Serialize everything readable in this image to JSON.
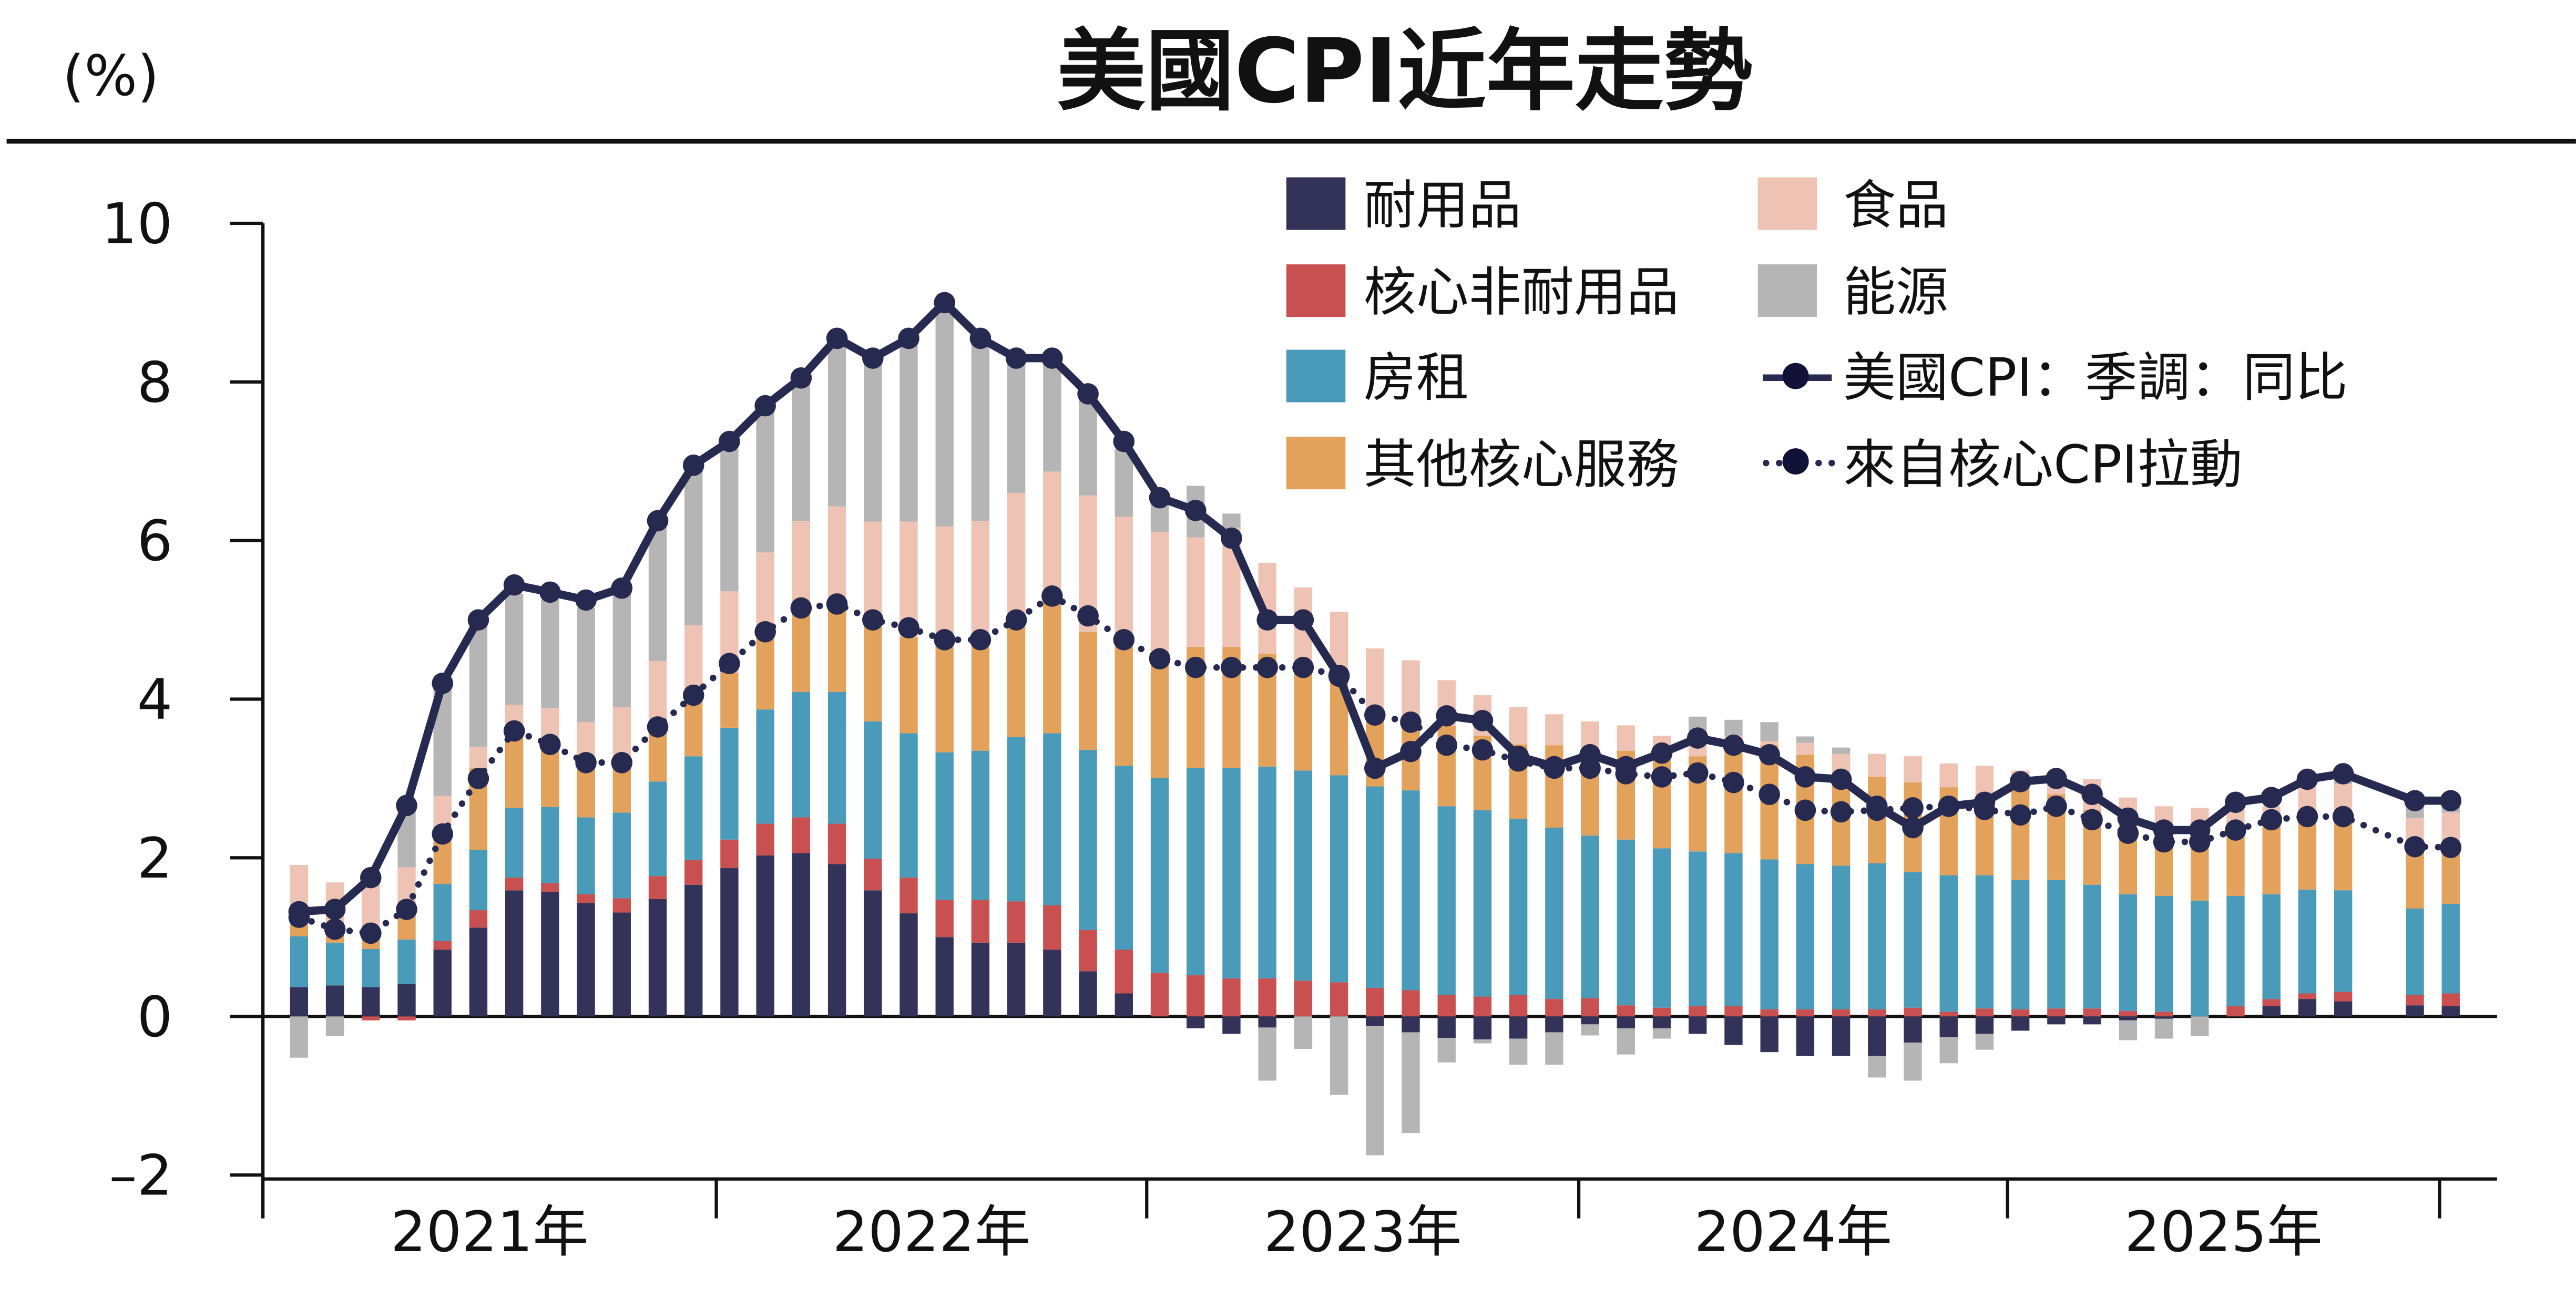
{
  "header": {
    "unit": "(%)",
    "title": "美國CPI近年走勢"
  },
  "chart_data": {
    "type": "bar",
    "stacked": true,
    "title": "美國CPI近年走勢",
    "ylabel": "(%)",
    "xlabel": "",
    "ylim": [
      -2,
      10
    ],
    "yticks": [
      10,
      8,
      6,
      4,
      2,
      0,
      -2
    ],
    "ytick_labels": [
      "10",
      "8",
      "6",
      "4",
      "2",
      "0",
      "–2"
    ],
    "xtick_labels": [
      "2021年",
      "2022年",
      "2023年",
      "2024年",
      "2025年"
    ],
    "grid": false,
    "legend_position": "top-right",
    "x": [
      "2020-12",
      "2021-01",
      "2021-02",
      "2021-03",
      "2021-04",
      "2021-05",
      "2021-06",
      "2021-07",
      "2021-08",
      "2021-09",
      "2021-10",
      "2021-11",
      "2021-12",
      "2022-01",
      "2022-02",
      "2022-03",
      "2022-04",
      "2022-05",
      "2022-06",
      "2022-07",
      "2022-08",
      "2022-09",
      "2022-10",
      "2022-11",
      "2022-12",
      "2023-01",
      "2023-02",
      "2023-03",
      "2023-04",
      "2023-05",
      "2023-06",
      "2023-07",
      "2023-08",
      "2023-09",
      "2023-10",
      "2023-11",
      "2023-12",
      "2024-01",
      "2024-02",
      "2024-03",
      "2024-04",
      "2024-05",
      "2024-06",
      "2024-07",
      "2024-08",
      "2024-09",
      "2024-10",
      "2024-11",
      "2024-12",
      "2025-01",
      "2025-02",
      "2025-03",
      "2025-04",
      "2025-05",
      "2025-06",
      "2025-07",
      "2025-08",
      "2025-09",
      "2025-10",
      "2025-11",
      "2025-12"
    ],
    "series": [
      {
        "name": "耐用品",
        "kind": "bar",
        "color": "#33335a",
        "values": [
          0.37,
          0.39,
          0.37,
          0.41,
          0.84,
          1.12,
          1.59,
          1.57,
          1.43,
          1.31,
          1.48,
          1.66,
          1.87,
          2.03,
          2.06,
          1.92,
          1.59,
          1.3,
          1.0,
          0.93,
          0.93,
          0.84,
          0.57,
          0.29,
          0,
          -0.15,
          -0.22,
          -0.14,
          0,
          0,
          -0.12,
          -0.2,
          -0.27,
          -0.29,
          -0.28,
          -0.2,
          -0.1,
          -0.15,
          -0.15,
          -0.22,
          -0.36,
          -0.45,
          -0.5,
          -0.5,
          -0.5,
          -0.33,
          -0.26,
          -0.22,
          -0.18,
          -0.1,
          -0.1,
          -0.05,
          -0.03,
          0,
          0,
          0.13,
          0.22,
          0.19,
          null,
          0.14,
          0.13
        ]
      },
      {
        "name": "核心非耐用品",
        "kind": "bar",
        "color": "#c85050",
        "values": [
          0,
          0,
          -0.05,
          -0.05,
          0.11,
          0.22,
          0.16,
          0.11,
          0.11,
          0.18,
          0.29,
          0.31,
          0.36,
          0.4,
          0.45,
          0.51,
          0.4,
          0.45,
          0.47,
          0.54,
          0.52,
          0.56,
          0.52,
          0.55,
          0.55,
          0.52,
          0.48,
          0.48,
          0.45,
          0.43,
          0.36,
          0.33,
          0.27,
          0.25,
          0.27,
          0.22,
          0.23,
          0.14,
          0.11,
          0.13,
          0.13,
          0.09,
          0.09,
          0.09,
          0.09,
          0.11,
          0.06,
          0.1,
          0.09,
          0.1,
          0.1,
          0.07,
          0.06,
          0,
          0.13,
          0.09,
          0.07,
          0.12,
          null,
          0.13,
          0.16
        ]
      },
      {
        "name": "房租",
        "kind": "bar",
        "color": "#4a9aba",
        "values": [
          0.64,
          0.54,
          0.48,
          0.56,
          0.72,
          0.76,
          0.88,
          0.96,
          0.97,
          1.08,
          1.19,
          1.31,
          1.41,
          1.44,
          1.58,
          1.66,
          1.73,
          1.82,
          1.86,
          1.88,
          2.07,
          2.17,
          2.27,
          2.32,
          2.46,
          2.61,
          2.65,
          2.67,
          2.65,
          2.61,
          2.54,
          2.52,
          2.38,
          2.35,
          2.22,
          2.16,
          2.05,
          2.09,
          2.01,
          1.95,
          1.93,
          1.89,
          1.83,
          1.81,
          1.84,
          1.71,
          1.72,
          1.68,
          1.63,
          1.62,
          1.56,
          1.47,
          1.46,
          1.46,
          1.39,
          1.32,
          1.31,
          1.28,
          null,
          1.09,
          1.13
        ]
      },
      {
        "name": "其他核心服務",
        "kind": "bar",
        "color": "#e3a25c",
        "values": [
          0.23,
          0.15,
          0.12,
          0.3,
          0.6,
          1.03,
          0.88,
          0.72,
          0.62,
          0.59,
          0.65,
          0.68,
          0.69,
          0.98,
          1.06,
          1.06,
          1.24,
          1.21,
          1.37,
          1.31,
          1.44,
          1.65,
          1.49,
          1.5,
          1.43,
          1.53,
          1.53,
          1.42,
          1.36,
          1.25,
          0.91,
          0.84,
          1.01,
          0.94,
          0.94,
          1.04,
          0.78,
          1.12,
          1.13,
          1.2,
          1.3,
          1.44,
          1.38,
          1.16,
          1.09,
          1.13,
          1.11,
          1.02,
          1.27,
          1.08,
          0.94,
          0.89,
          0.72,
          0.78,
          0.87,
          0.92,
          0.9,
          0.91,
          null,
          0.77,
          0.67
        ]
      },
      {
        "name": "食品",
        "kind": "bar",
        "color": "#efc3b3",
        "values": [
          0.67,
          0.61,
          0.67,
          0.61,
          0.51,
          0.27,
          0.42,
          0.53,
          0.58,
          0.74,
          0.87,
          0.97,
          1.03,
          1.0,
          1.1,
          1.28,
          1.28,
          1.46,
          1.48,
          1.59,
          1.64,
          1.65,
          1.72,
          1.64,
          1.67,
          1.38,
          1.5,
          1.15,
          0.95,
          0.81,
          0.83,
          0.8,
          0.58,
          0.51,
          0.47,
          0.39,
          0.66,
          0.32,
          0.29,
          0.22,
          0.18,
          0.05,
          0.15,
          0.25,
          0.29,
          0.33,
          0.3,
          0.36,
          0.11,
          0.26,
          0.39,
          0.33,
          0.41,
          0.39,
          0.26,
          0.19,
          0.49,
          0.43,
          null,
          0.37,
          0.48
        ]
      },
      {
        "name": "能源",
        "kind": "bar",
        "color": "#b5b5b5",
        "values": [
          -0.52,
          -0.25,
          0.1,
          0.73,
          1.42,
          1.53,
          1.4,
          1.37,
          1.44,
          1.43,
          1.71,
          2.0,
          1.8,
          1.84,
          1.81,
          2.15,
          2.12,
          2.37,
          2.81,
          2.29,
          1.68,
          1.41,
          1.27,
          0.86,
          0.42,
          0.65,
          0.18,
          -0.67,
          -0.41,
          -0.99,
          -1.63,
          -1.27,
          -0.31,
          -0.05,
          -0.33,
          -0.41,
          -0.14,
          -0.33,
          -0.13,
          0.28,
          0.2,
          0.24,
          0.08,
          0.08,
          -0.27,
          -0.48,
          -0.33,
          -0.2,
          0,
          0,
          0,
          -0.25,
          -0.25,
          -0.25,
          0,
          0,
          0,
          0.06,
          null,
          0.2,
          0.08
        ]
      },
      {
        "name": "美國CPI：季調：同比",
        "kind": "line",
        "color": "#272a50",
        "values": [
          1.32,
          1.35,
          1.75,
          2.66,
          4.2,
          5.0,
          5.44,
          5.35,
          5.25,
          5.4,
          6.25,
          6.95,
          7.25,
          7.7,
          8.05,
          8.55,
          8.3,
          8.55,
          9.0,
          8.55,
          8.3,
          8.3,
          7.85,
          7.25,
          6.54,
          6.38,
          6.03,
          5.0,
          5.0,
          4.29,
          3.13,
          3.34,
          3.79,
          3.73,
          3.28,
          3.15,
          3.3,
          3.15,
          3.32,
          3.51,
          3.42,
          3.3,
          3.02,
          2.99,
          2.65,
          2.38,
          2.65,
          2.7,
          2.96,
          3.0,
          2.8,
          2.5,
          2.35,
          2.35,
          2.7,
          2.76,
          2.99,
          3.06,
          null,
          2.72,
          2.72
        ]
      },
      {
        "name": "來自核心CPI拉動",
        "kind": "dotted-line",
        "color": "#272a50",
        "values": [
          1.25,
          1.1,
          1.05,
          1.35,
          2.3,
          3.0,
          3.6,
          3.43,
          3.2,
          3.2,
          3.65,
          4.05,
          4.45,
          4.85,
          5.15,
          5.2,
          5.0,
          4.9,
          4.75,
          4.75,
          5.0,
          5.3,
          5.05,
          4.75,
          4.51,
          4.4,
          4.4,
          4.4,
          4.4,
          4.3,
          3.8,
          3.71,
          3.42,
          3.36,
          3.22,
          3.13,
          3.13,
          3.06,
          3.02,
          3.07,
          2.95,
          2.8,
          2.6,
          2.58,
          2.6,
          2.63,
          2.65,
          2.61,
          2.54,
          2.65,
          2.48,
          2.31,
          2.2,
          2.2,
          2.35,
          2.48,
          2.52,
          2.52,
          null,
          2.14,
          2.13
        ]
      }
    ]
  }
}
